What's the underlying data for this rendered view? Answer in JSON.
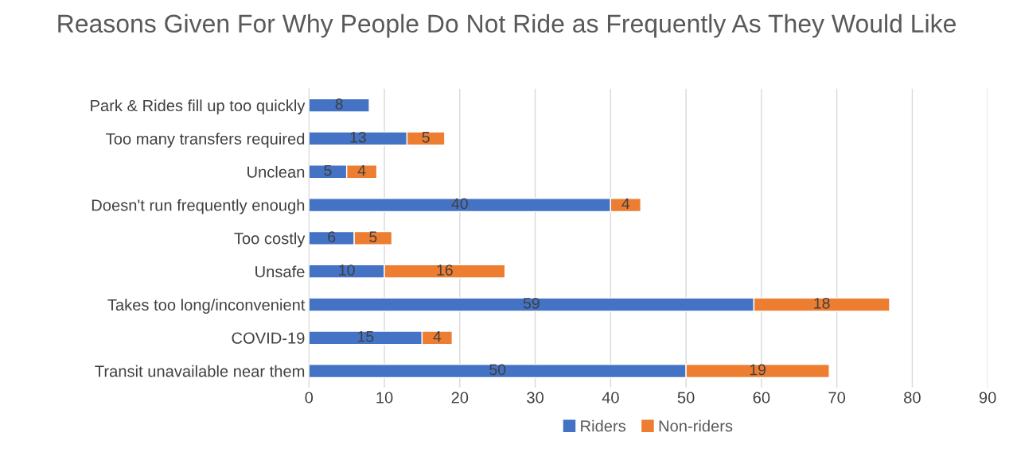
{
  "chart_data": {
    "type": "bar",
    "orientation": "horizontal",
    "stacked": true,
    "title": "Reasons Given For Why People Do Not Ride as Frequently As They Would Like",
    "categories": [
      "Park & Rides fill up too quickly",
      "Too many transfers required",
      "Unclean",
      "Doesn't run frequently enough",
      "Too costly",
      "Unsafe",
      "Takes too long/inconvenient",
      "COVID-19",
      "Transit unavailable near them"
    ],
    "series": [
      {
        "name": "Riders",
        "color": "#4472c4",
        "values": [
          8,
          13,
          5,
          40,
          6,
          10,
          59,
          15,
          50
        ]
      },
      {
        "name": "Non-riders",
        "color": "#ed7d31",
        "values": [
          null,
          5,
          4,
          4,
          5,
          16,
          18,
          4,
          19
        ]
      }
    ],
    "xlim": [
      0,
      90
    ],
    "xticks": [
      0,
      10,
      20,
      30,
      40,
      50,
      60,
      70,
      80,
      90
    ],
    "grid": "x",
    "legend": "bottom",
    "data_labels": true
  }
}
